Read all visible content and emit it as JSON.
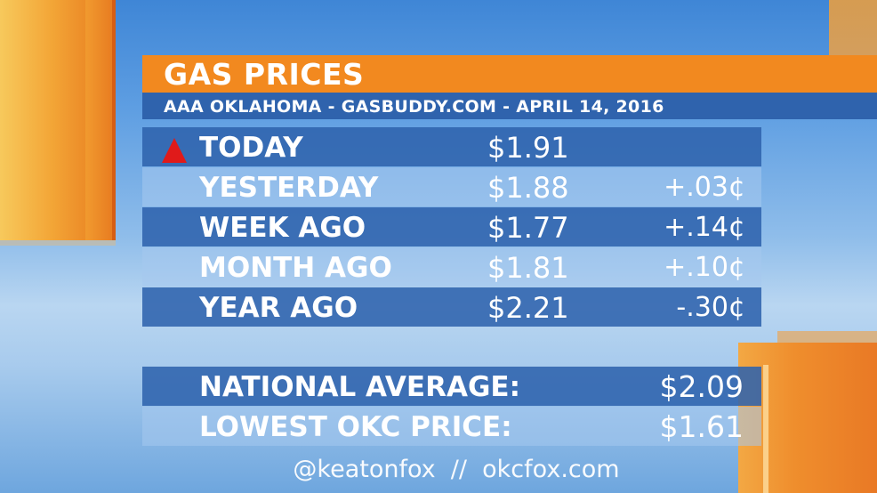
{
  "header": {
    "title": "GAS PRICES",
    "subtitle": "AAA OKLAHOMA - GASBUDDY.COM - APRIL 14, 2016"
  },
  "prices": [
    {
      "label": "TODAY",
      "price": "$1.91",
      "change": "",
      "indicator": "up-arrow-icon"
    },
    {
      "label": "YESTERDAY",
      "price": "$1.88",
      "change": "+.03¢"
    },
    {
      "label": "WEEK AGO",
      "price": "$1.77",
      "change": "+.14¢"
    },
    {
      "label": "MONTH AGO",
      "price": "$1.81",
      "change": "+.10¢"
    },
    {
      "label": "YEAR AGO",
      "price": "$2.21",
      "change": "-.30¢"
    }
  ],
  "stats": {
    "national_average_label": "NATIONAL AVERAGE:",
    "national_average_value": "$2.09",
    "lowest_okc_label": "LOWEST OKC PRICE:",
    "lowest_okc_value": "$1.61"
  },
  "footer": {
    "text": "@keatonfox  //  okcfox.com"
  },
  "colors": {
    "header_orange": "#f2891f",
    "bar_blue": "#2f63ad",
    "arrow_red": "#e01a1a"
  }
}
